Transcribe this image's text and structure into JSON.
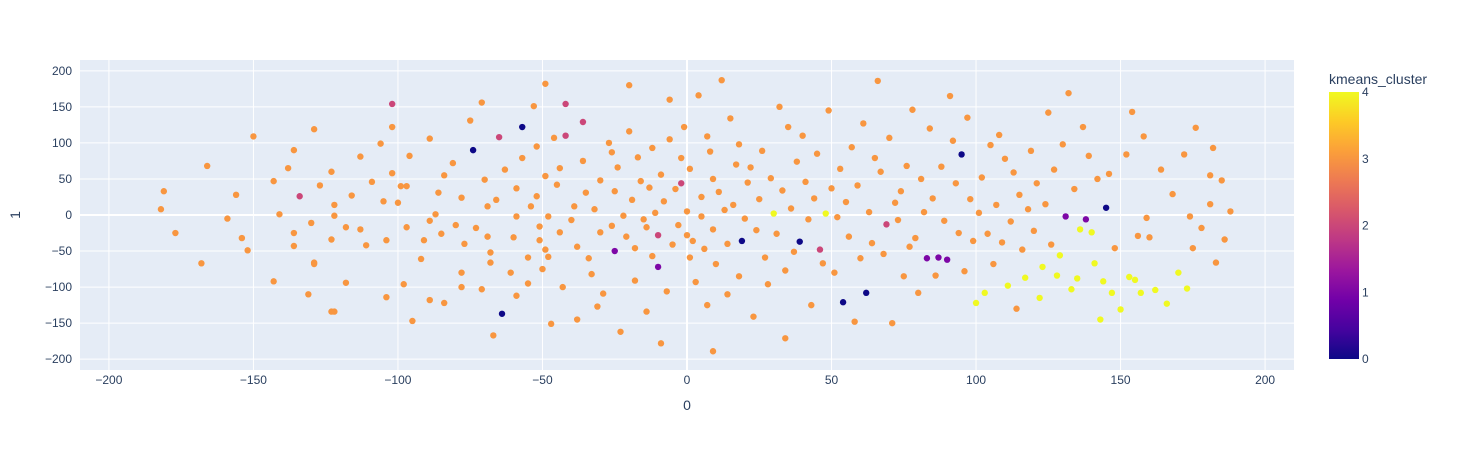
{
  "chart_data": {
    "type": "scatter",
    "xlabel": "0",
    "ylabel": "1",
    "xlim": [
      -210,
      210
    ],
    "ylim": [
      -215,
      215
    ],
    "x_ticks": [
      -200,
      -150,
      -100,
      -50,
      0,
      50,
      100,
      150,
      200
    ],
    "y_ticks": [
      -200,
      -150,
      -100,
      -50,
      0,
      50,
      100,
      150,
      200
    ],
    "grid": true,
    "plot_background": "#e5ecf6",
    "colorbar": {
      "title": "kmeans_cluster",
      "min": 0,
      "max": 4,
      "ticks": [
        0,
        1,
        2,
        3,
        4
      ],
      "colorscale": [
        "#0d0887",
        "#46039f",
        "#7201a8",
        "#9c179e",
        "#bd3786",
        "#d8576b",
        "#ed7953",
        "#fb9f3a",
        "#fdca26",
        "#f0f921"
      ]
    },
    "points": [
      [
        -181,
        33,
        3
      ],
      [
        -182,
        8,
        3
      ],
      [
        -177,
        -25,
        3
      ],
      [
        -168,
        -67,
        3
      ],
      [
        -166,
        68,
        3
      ],
      [
        -159,
        -5,
        3
      ],
      [
        -156,
        28,
        3
      ],
      [
        -154,
        -32,
        3
      ],
      [
        -152,
        -49,
        3
      ],
      [
        -150,
        109,
        3
      ],
      [
        -143,
        47,
        3
      ],
      [
        -143,
        -92,
        3
      ],
      [
        -141,
        1,
        3
      ],
      [
        -138,
        65,
        3
      ],
      [
        -136,
        90,
        3
      ],
      [
        -136,
        -25,
        3
      ],
      [
        -136,
        -43,
        3
      ],
      [
        -134,
        26,
        2
      ],
      [
        -131,
        -110,
        3
      ],
      [
        -130,
        -11,
        3
      ],
      [
        -129,
        119,
        3
      ],
      [
        -129,
        -66,
        3
      ],
      [
        -129,
        -68,
        3
      ],
      [
        -127,
        41,
        3
      ],
      [
        -123,
        60,
        3
      ],
      [
        -123,
        -134,
        3
      ],
      [
        -122,
        14,
        3
      ],
      [
        -122,
        -1,
        3
      ],
      [
        -123,
        -34,
        3
      ],
      [
        -118,
        -17,
        3
      ],
      [
        -118,
        -94,
        3
      ],
      [
        -116,
        27,
        3
      ],
      [
        -113,
        81,
        3
      ],
      [
        -113,
        -20,
        3
      ],
      [
        -111,
        -42,
        3
      ],
      [
        -109,
        46,
        3
      ],
      [
        -106,
        99,
        3
      ],
      [
        -105,
        19,
        3
      ],
      [
        -104,
        -35,
        3
      ],
      [
        -104,
        -114,
        3
      ],
      [
        -102,
        58,
        3
      ],
      [
        -102,
        122,
        3
      ],
      [
        -102,
        154,
        2
      ],
      [
        -100,
        17,
        3
      ],
      [
        -98,
        -96,
        3
      ],
      [
        -97,
        40,
        3
      ],
      [
        -97,
        -17,
        3
      ],
      [
        -96,
        82,
        3
      ],
      [
        -95,
        -147,
        3
      ],
      [
        -92,
        -61,
        3
      ],
      [
        -91,
        -35,
        3
      ],
      [
        -89,
        -8,
        3
      ],
      [
        -89,
        106,
        3
      ],
      [
        -89,
        -118,
        3
      ],
      [
        -87,
        1,
        3
      ],
      [
        -86,
        31,
        3
      ],
      [
        -85,
        -26,
        3
      ],
      [
        -84,
        55,
        3
      ],
      [
        -81,
        72,
        3
      ],
      [
        -80,
        -14,
        3
      ],
      [
        -78,
        24,
        3
      ],
      [
        -78,
        -80,
        3
      ],
      [
        -78,
        -100,
        3
      ],
      [
        -77,
        -40,
        3
      ],
      [
        -75,
        131,
        3
      ],
      [
        -74,
        90,
        0
      ],
      [
        -73,
        -18,
        3
      ],
      [
        -71,
        156,
        3
      ],
      [
        -70,
        49,
        3
      ],
      [
        -69,
        12,
        3
      ],
      [
        -69,
        -30,
        3
      ],
      [
        -68,
        -52,
        3
      ],
      [
        -68,
        -66,
        3
      ],
      [
        -67,
        -167,
        3
      ],
      [
        -66,
        21,
        3
      ],
      [
        -65,
        108,
        2
      ],
      [
        -64,
        -137,
        0
      ],
      [
        -63,
        63,
        3
      ],
      [
        -61,
        -80,
        3
      ],
      [
        -60,
        -31,
        3
      ],
      [
        -59,
        37,
        3
      ],
      [
        -59,
        -2,
        3
      ],
      [
        -59,
        -112,
        3
      ],
      [
        -57,
        122,
        0
      ],
      [
        -57,
        79,
        3
      ],
      [
        -55,
        -59,
        3
      ],
      [
        -55,
        -95,
        3
      ],
      [
        -54,
        12,
        3
      ],
      [
        -52,
        26,
        3
      ],
      [
        -52,
        95,
        3
      ],
      [
        -51,
        -16,
        3
      ],
      [
        -51,
        -35,
        3
      ],
      [
        -50,
        -75,
        3
      ],
      [
        -49,
        182,
        3
      ],
      [
        -49,
        54,
        3
      ],
      [
        -49,
        -48,
        3
      ],
      [
        -48,
        -2,
        3
      ],
      [
        -48,
        -58,
        3
      ],
      [
        -46,
        107,
        3
      ],
      [
        -45,
        42,
        3
      ],
      [
        -44,
        -24,
        3
      ],
      [
        -44,
        65,
        3
      ],
      [
        -43,
        -100,
        3
      ],
      [
        -42,
        154,
        2
      ],
      [
        -42,
        110,
        2
      ],
      [
        -40,
        -7,
        3
      ],
      [
        -39,
        12,
        3
      ],
      [
        -38,
        -44,
        3
      ],
      [
        -38,
        -145,
        3
      ],
      [
        -36,
        129,
        2
      ],
      [
        -36,
        75,
        3
      ],
      [
        -35,
        31,
        3
      ],
      [
        -34,
        -60,
        3
      ],
      [
        -33,
        -82,
        3
      ],
      [
        -32,
        8,
        3
      ],
      [
        -31,
        -127,
        3
      ],
      [
        -30,
        48,
        3
      ],
      [
        -30,
        -24,
        3
      ],
      [
        -29,
        -109,
        3
      ],
      [
        -27,
        100,
        3
      ],
      [
        -26,
        -15,
        3
      ],
      [
        -25,
        -50,
        1
      ],
      [
        -25,
        33,
        3
      ],
      [
        -24,
        66,
        3
      ],
      [
        -23,
        -162,
        3
      ],
      [
        -22,
        -1,
        3
      ],
      [
        -21,
        -30,
        3
      ],
      [
        -20,
        116,
        3
      ],
      [
        -19,
        21,
        3
      ],
      [
        -18,
        -91,
        3
      ],
      [
        -18,
        -46,
        3
      ],
      [
        -17,
        80,
        3
      ],
      [
        -16,
        47,
        3
      ],
      [
        -15,
        -6,
        3
      ],
      [
        -14,
        -17,
        3
      ],
      [
        -14,
        -134,
        3
      ],
      [
        -13,
        38,
        3
      ],
      [
        -12,
        93,
        3
      ],
      [
        -12,
        -57,
        3
      ],
      [
        -11,
        3,
        3
      ],
      [
        -10,
        -28,
        2
      ],
      [
        -10,
        -72,
        1
      ],
      [
        -9,
        56,
        3
      ],
      [
        -9,
        -178,
        3
      ],
      [
        -8,
        19,
        3
      ],
      [
        -7,
        -106,
        3
      ],
      [
        -6,
        105,
        3
      ],
      [
        -5,
        -41,
        3
      ],
      [
        -4,
        36,
        3
      ],
      [
        -3,
        -14,
        3
      ],
      [
        -2,
        79,
        3
      ],
      [
        -2,
        44,
        2
      ],
      [
        -1,
        122,
        3
      ],
      [
        0,
        5,
        3
      ],
      [
        0,
        -28,
        3
      ],
      [
        1,
        64,
        3
      ],
      [
        1,
        -59,
        3
      ],
      [
        2,
        -36,
        3
      ],
      [
        3,
        -93,
        3
      ],
      [
        4,
        166,
        3
      ],
      [
        5,
        25,
        3
      ],
      [
        5,
        -2,
        3
      ],
      [
        6,
        -47,
        3
      ],
      [
        7,
        109,
        3
      ],
      [
        7,
        -125,
        3
      ],
      [
        8,
        88,
        3
      ],
      [
        9,
        50,
        3
      ],
      [
        9,
        -20,
        3
      ],
      [
        10,
        -68,
        3
      ],
      [
        11,
        32,
        3
      ],
      [
        12,
        187,
        3
      ],
      [
        13,
        7,
        3
      ],
      [
        14,
        -40,
        3
      ],
      [
        14,
        -110,
        3
      ],
      [
        15,
        134,
        3
      ],
      [
        16,
        14,
        3
      ],
      [
        17,
        70,
        3
      ],
      [
        18,
        98,
        3
      ],
      [
        18,
        -85,
        3
      ],
      [
        19,
        -36,
        0
      ],
      [
        20,
        -5,
        3
      ],
      [
        21,
        45,
        3
      ],
      [
        22,
        66,
        3
      ],
      [
        23,
        -141,
        3
      ],
      [
        24,
        -21,
        3
      ],
      [
        25,
        22,
        3
      ],
      [
        26,
        89,
        3
      ],
      [
        27,
        -59,
        3
      ],
      [
        28,
        -96,
        3
      ],
      [
        29,
        51,
        3
      ],
      [
        30,
        2,
        4
      ],
      [
        31,
        -26,
        3
      ],
      [
        32,
        150,
        3
      ],
      [
        33,
        34,
        3
      ],
      [
        34,
        -171,
        3
      ],
      [
        34,
        -77,
        3
      ],
      [
        35,
        122,
        3
      ],
      [
        36,
        9,
        3
      ],
      [
        37,
        -51,
        3
      ],
      [
        38,
        74,
        3
      ],
      [
        39,
        -37,
        0
      ],
      [
        40,
        110,
        3
      ],
      [
        41,
        46,
        3
      ],
      [
        42,
        -6,
        3
      ],
      [
        43,
        -125,
        3
      ],
      [
        44,
        23,
        3
      ],
      [
        45,
        85,
        3
      ],
      [
        46,
        -48,
        2
      ],
      [
        47,
        -67,
        3
      ],
      [
        48,
        2,
        4
      ],
      [
        49,
        145,
        3
      ],
      [
        50,
        37,
        3
      ],
      [
        51,
        -80,
        3
      ],
      [
        52,
        -3,
        3
      ],
      [
        53,
        64,
        3
      ],
      [
        54,
        -121,
        0
      ],
      [
        55,
        18,
        3
      ],
      [
        56,
        -30,
        3
      ],
      [
        57,
        94,
        3
      ],
      [
        58,
        -148,
        3
      ],
      [
        59,
        41,
        3
      ],
      [
        60,
        -60,
        3
      ],
      [
        61,
        127,
        3
      ],
      [
        62,
        -108,
        0
      ],
      [
        63,
        4,
        3
      ],
      [
        64,
        -39,
        3
      ],
      [
        65,
        79,
        3
      ],
      [
        66,
        186,
        3
      ],
      [
        67,
        60,
        3
      ],
      [
        68,
        -54,
        3
      ],
      [
        69,
        -13,
        2
      ],
      [
        70,
        107,
        3
      ],
      [
        71,
        -150,
        3
      ],
      [
        72,
        17,
        3
      ],
      [
        73,
        -7,
        3
      ],
      [
        74,
        33,
        3
      ],
      [
        75,
        -85,
        3
      ],
      [
        76,
        68,
        3
      ],
      [
        77,
        -44,
        3
      ],
      [
        78,
        146,
        3
      ],
      [
        79,
        -32,
        3
      ],
      [
        80,
        -108,
        3
      ],
      [
        81,
        50,
        3
      ],
      [
        82,
        4,
        3
      ],
      [
        83,
        -60,
        1
      ],
      [
        84,
        120,
        3
      ],
      [
        85,
        23,
        3
      ],
      [
        86,
        -84,
        3
      ],
      [
        87,
        -59,
        1
      ],
      [
        88,
        67,
        3
      ],
      [
        89,
        -8,
        3
      ],
      [
        90,
        -62,
        1
      ],
      [
        91,
        165,
        3
      ],
      [
        92,
        103,
        3
      ],
      [
        93,
        44,
        3
      ],
      [
        94,
        -25,
        3
      ],
      [
        95,
        84,
        0
      ],
      [
        96,
        -78,
        3
      ],
      [
        97,
        135,
        3
      ],
      [
        98,
        22,
        3
      ],
      [
        99,
        -36,
        3
      ],
      [
        100,
        -122,
        4
      ],
      [
        101,
        3,
        3
      ],
      [
        102,
        52,
        3
      ],
      [
        103,
        -108,
        4
      ],
      [
        104,
        -26,
        3
      ],
      [
        105,
        97,
        3
      ],
      [
        106,
        -68,
        3
      ],
      [
        107,
        14,
        3
      ],
      [
        108,
        111,
        3
      ],
      [
        109,
        -38,
        3
      ],
      [
        110,
        78,
        3
      ],
      [
        111,
        -98,
        4
      ],
      [
        112,
        -9,
        3
      ],
      [
        113,
        59,
        3
      ],
      [
        114,
        -130,
        3
      ],
      [
        115,
        28,
        3
      ],
      [
        116,
        -48,
        3
      ],
      [
        117,
        -87,
        4
      ],
      [
        118,
        8,
        3
      ],
      [
        119,
        89,
        3
      ],
      [
        120,
        -22,
        3
      ],
      [
        121,
        44,
        3
      ],
      [
        122,
        -115,
        4
      ],
      [
        123,
        -72,
        4
      ],
      [
        124,
        15,
        3
      ],
      [
        125,
        142,
        3
      ],
      [
        126,
        -41,
        3
      ],
      [
        127,
        63,
        3
      ],
      [
        128,
        -84,
        4
      ],
      [
        129,
        -56,
        4
      ],
      [
        130,
        98,
        3
      ],
      [
        131,
        -2,
        1
      ],
      [
        132,
        169,
        3
      ],
      [
        133,
        -103,
        4
      ],
      [
        134,
        36,
        3
      ],
      [
        135,
        -88,
        4
      ],
      [
        136,
        -20,
        4
      ],
      [
        137,
        122,
        3
      ],
      [
        138,
        -6,
        1
      ],
      [
        139,
        82,
        3
      ],
      [
        140,
        -24,
        4
      ],
      [
        141,
        -67,
        4
      ],
      [
        142,
        50,
        3
      ],
      [
        143,
        -145,
        4
      ],
      [
        144,
        -92,
        4
      ],
      [
        145,
        10,
        0
      ],
      [
        146,
        57,
        3
      ],
      [
        147,
        -108,
        4
      ],
      [
        148,
        -46,
        3
      ],
      [
        150,
        -131,
        4
      ],
      [
        152,
        84,
        3
      ],
      [
        153,
        -86,
        4
      ],
      [
        154,
        143,
        3
      ],
      [
        155,
        -90,
        4
      ],
      [
        156,
        -29,
        3
      ],
      [
        157,
        -108,
        4
      ],
      [
        158,
        109,
        3
      ],
      [
        159,
        -4,
        3
      ],
      [
        160,
        -31,
        3
      ],
      [
        162,
        -104,
        4
      ],
      [
        164,
        63,
        3
      ],
      [
        166,
        -123,
        4
      ],
      [
        168,
        29,
        3
      ],
      [
        170,
        -80,
        4
      ],
      [
        172,
        84,
        3
      ],
      [
        173,
        -102,
        4
      ],
      [
        174,
        -2,
        3
      ],
      [
        175,
        -46,
        3
      ],
      [
        176,
        121,
        3
      ],
      [
        178,
        -18,
        3
      ],
      [
        181,
        15,
        3
      ],
      [
        181,
        55,
        3
      ],
      [
        182,
        93,
        3
      ],
      [
        183,
        -66,
        3
      ],
      [
        185,
        48,
        3
      ],
      [
        186,
        -34,
        3
      ],
      [
        188,
        5,
        3
      ],
      [
        -47,
        -151,
        3
      ],
      [
        -84,
        -122,
        3
      ],
      [
        -71,
        -103,
        3
      ],
      [
        9,
        -189,
        3
      ],
      [
        -6,
        160,
        3
      ],
      [
        -20,
        180,
        3
      ],
      [
        -26,
        87,
        3
      ],
      [
        -53,
        151,
        3
      ],
      [
        -99,
        40,
        3
      ],
      [
        -122,
        -134,
        3
      ]
    ]
  }
}
